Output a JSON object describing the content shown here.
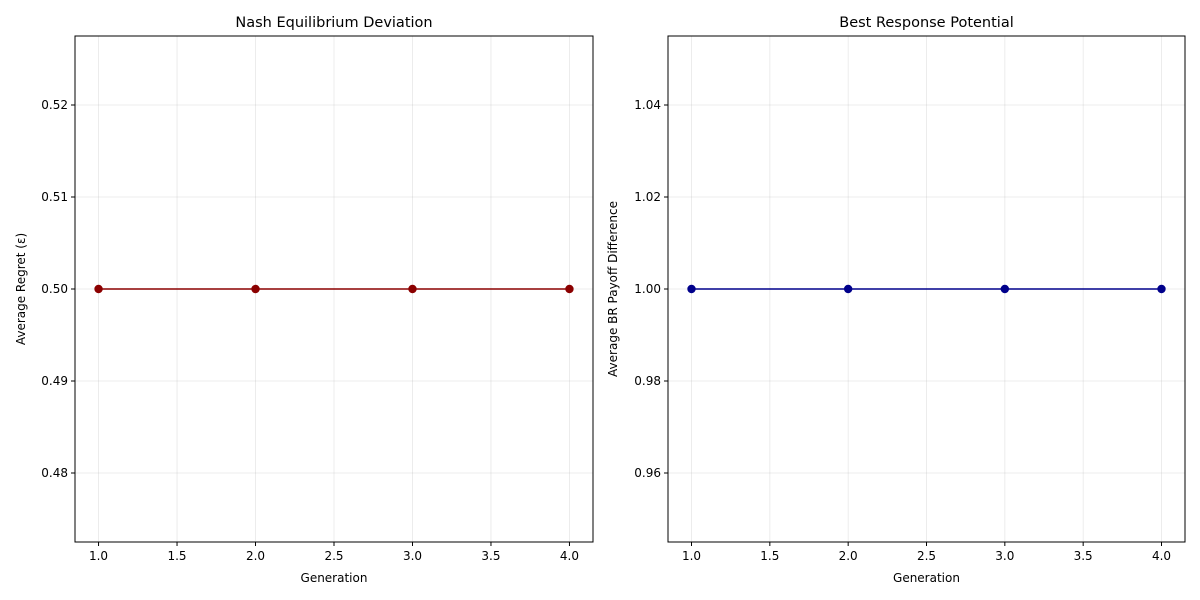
{
  "chart_data": [
    {
      "type": "line",
      "title": "Nash Equilibrium Deviation",
      "xlabel": "Generation",
      "ylabel": "Average Regret (ε)",
      "x": [
        1.0,
        2.0,
        3.0,
        4.0
      ],
      "series": [
        {
          "values": [
            0.5,
            0.5,
            0.5,
            0.5
          ],
          "color": "#8b0000"
        }
      ],
      "xlim": [
        0.85,
        4.15
      ],
      "ylim": [
        0.4725,
        0.5275
      ],
      "xticks": [
        "1.0",
        "1.5",
        "2.0",
        "2.5",
        "3.0",
        "3.5",
        "4.0"
      ],
      "yticks": [
        "0.48",
        "0.49",
        "0.50",
        "0.51",
        "0.52"
      ],
      "grid": true,
      "marker": "circle"
    },
    {
      "type": "line",
      "title": "Best Response Potential",
      "xlabel": "Generation",
      "ylabel": "Average BR Payoff Difference",
      "x": [
        1.0,
        2.0,
        3.0,
        4.0
      ],
      "series": [
        {
          "values": [
            1.0,
            1.0,
            1.0,
            1.0
          ],
          "color": "#00008b"
        }
      ],
      "xlim": [
        0.85,
        4.15
      ],
      "ylim": [
        0.945,
        1.055
      ],
      "xticks": [
        "1.0",
        "1.5",
        "2.0",
        "2.5",
        "3.0",
        "3.5",
        "4.0"
      ],
      "yticks": [
        "0.96",
        "0.98",
        "1.00",
        "1.02",
        "1.04"
      ],
      "grid": true,
      "marker": "circle"
    }
  ]
}
